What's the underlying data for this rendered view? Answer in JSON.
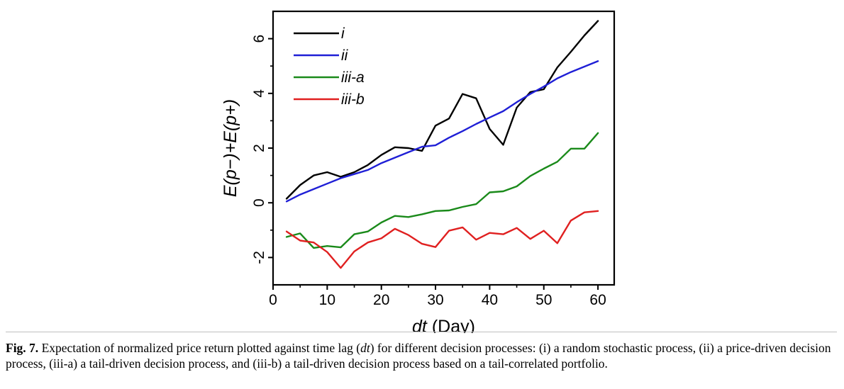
{
  "chart_data": {
    "type": "line",
    "xlabel_parts": [
      {
        "text": "dt",
        "italic": true
      },
      {
        "text": " (Day)",
        "italic": false
      }
    ],
    "ylabel": "E(p−)+E(p+)",
    "xlim": [
      0,
      63
    ],
    "ylim": [
      -3,
      7
    ],
    "xticks": [
      0,
      10,
      20,
      30,
      40,
      50,
      60
    ],
    "yticks": [
      -2,
      0,
      2,
      4,
      6
    ],
    "legend_position": "top-left",
    "series": [
      {
        "name": "i",
        "color": "#000000",
        "x": [
          2.5,
          5,
          7.5,
          10,
          12.5,
          15,
          17.5,
          20,
          22.5,
          25,
          27.5,
          30,
          32.5,
          35,
          37.5,
          40,
          42.5,
          45,
          47.5,
          50,
          52.5,
          55,
          57.5,
          60
        ],
        "y": [
          0.15,
          0.65,
          1.0,
          1.12,
          0.95,
          1.12,
          1.38,
          1.75,
          2.03,
          2.0,
          1.9,
          2.82,
          3.08,
          3.98,
          3.82,
          2.7,
          2.12,
          3.48,
          4.05,
          4.15,
          4.95,
          5.52,
          6.12,
          6.65
        ]
      },
      {
        "name": "ii",
        "color": "#1f1fd6",
        "x": [
          2.5,
          5,
          7.5,
          10,
          12.5,
          15,
          17.5,
          20,
          22.5,
          25,
          27.5,
          30,
          32.5,
          35,
          37.5,
          40,
          42.5,
          45,
          47.5,
          50,
          52.5,
          55,
          57.5,
          60
        ],
        "y": [
          0.05,
          0.3,
          0.5,
          0.7,
          0.9,
          1.05,
          1.2,
          1.45,
          1.65,
          1.85,
          2.05,
          2.1,
          2.38,
          2.62,
          2.88,
          3.12,
          3.35,
          3.68,
          3.98,
          4.25,
          4.55,
          4.78,
          4.98,
          5.18
        ]
      },
      {
        "name": "iii-a",
        "color": "#1a8a1a",
        "x": [
          2.5,
          5,
          7.5,
          10,
          12.5,
          15,
          17.5,
          20,
          22.5,
          25,
          27.5,
          30,
          32.5,
          35,
          37.5,
          40,
          42.5,
          45,
          47.5,
          50,
          52.5,
          55,
          57.5,
          60
        ],
        "y": [
          -1.25,
          -1.12,
          -1.65,
          -1.58,
          -1.63,
          -1.15,
          -1.05,
          -0.72,
          -0.48,
          -0.52,
          -0.42,
          -0.3,
          -0.28,
          -0.15,
          -0.05,
          0.38,
          0.42,
          0.6,
          0.98,
          1.25,
          1.5,
          1.98,
          1.98,
          2.55
        ]
      },
      {
        "name": "iii-b",
        "color": "#e02020",
        "x": [
          2.5,
          5,
          7.5,
          10,
          12.5,
          15,
          17.5,
          20,
          22.5,
          25,
          27.5,
          30,
          32.5,
          35,
          37.5,
          40,
          42.5,
          45,
          47.5,
          50,
          52.5,
          55,
          57.5,
          60
        ],
        "y": [
          -1.05,
          -1.38,
          -1.45,
          -1.8,
          -2.38,
          -1.78,
          -1.45,
          -1.3,
          -0.95,
          -1.18,
          -1.5,
          -1.62,
          -1.02,
          -0.9,
          -1.35,
          -1.1,
          -1.15,
          -0.92,
          -1.32,
          -1.02,
          -1.48,
          -0.65,
          -0.35,
          -0.3
        ]
      }
    ]
  },
  "caption": {
    "label": "Fig. 7.",
    "text_parts": [
      {
        "text": " Expectation of normalized price return plotted against time lag (",
        "italic": false
      },
      {
        "text": "dt",
        "italic": true
      },
      {
        "text": ") for different decision processes: (i) a random stochastic process, (ii) a price-driven decision process, (iii-a) a tail-driven decision process, and (iii-b) a tail-driven decision process based on a tail-correlated portfolio.",
        "italic": false
      }
    ]
  }
}
